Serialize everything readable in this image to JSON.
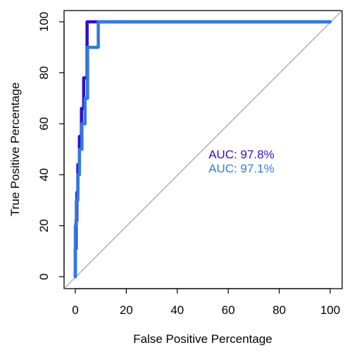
{
  "chart_data": {
    "type": "line",
    "title": "",
    "xlabel": "False Positive Percentage",
    "ylabel": "True Positive Percentage",
    "xlim": [
      0,
      100
    ],
    "ylim": [
      0,
      100
    ],
    "x_ticks": [
      0,
      20,
      40,
      60,
      80,
      100
    ],
    "y_ticks": [
      0,
      20,
      40,
      60,
      80,
      100
    ],
    "grid": false,
    "diagonal_reference": true,
    "series": [
      {
        "color": "#2E10D0",
        "auc_label": "AUC: 97.8%",
        "x": [
          0,
          0,
          0.3,
          0.3,
          0.6,
          0.6,
          1.0,
          1.0,
          1.6,
          1.6,
          2.4,
          2.4,
          3.3,
          3.3,
          4.6,
          4.6,
          100
        ],
        "y": [
          0,
          11,
          11,
          22,
          22,
          33,
          33,
          44,
          44,
          55,
          55,
          66,
          66,
          78,
          78,
          100,
          100
        ]
      },
      {
        "color": "#2F7BE0",
        "auc_label": "AUC: 97.1%",
        "x": [
          0,
          0,
          0.4,
          0.4,
          1.0,
          1.0,
          1.6,
          1.6,
          2.6,
          2.6,
          3.8,
          3.8,
          4.8,
          4.8,
          9.0,
          9.0,
          100
        ],
        "y": [
          0,
          20,
          20,
          30,
          30,
          40,
          40,
          50,
          50,
          60,
          60,
          70,
          70,
          90,
          90,
          100,
          100
        ]
      }
    ]
  }
}
